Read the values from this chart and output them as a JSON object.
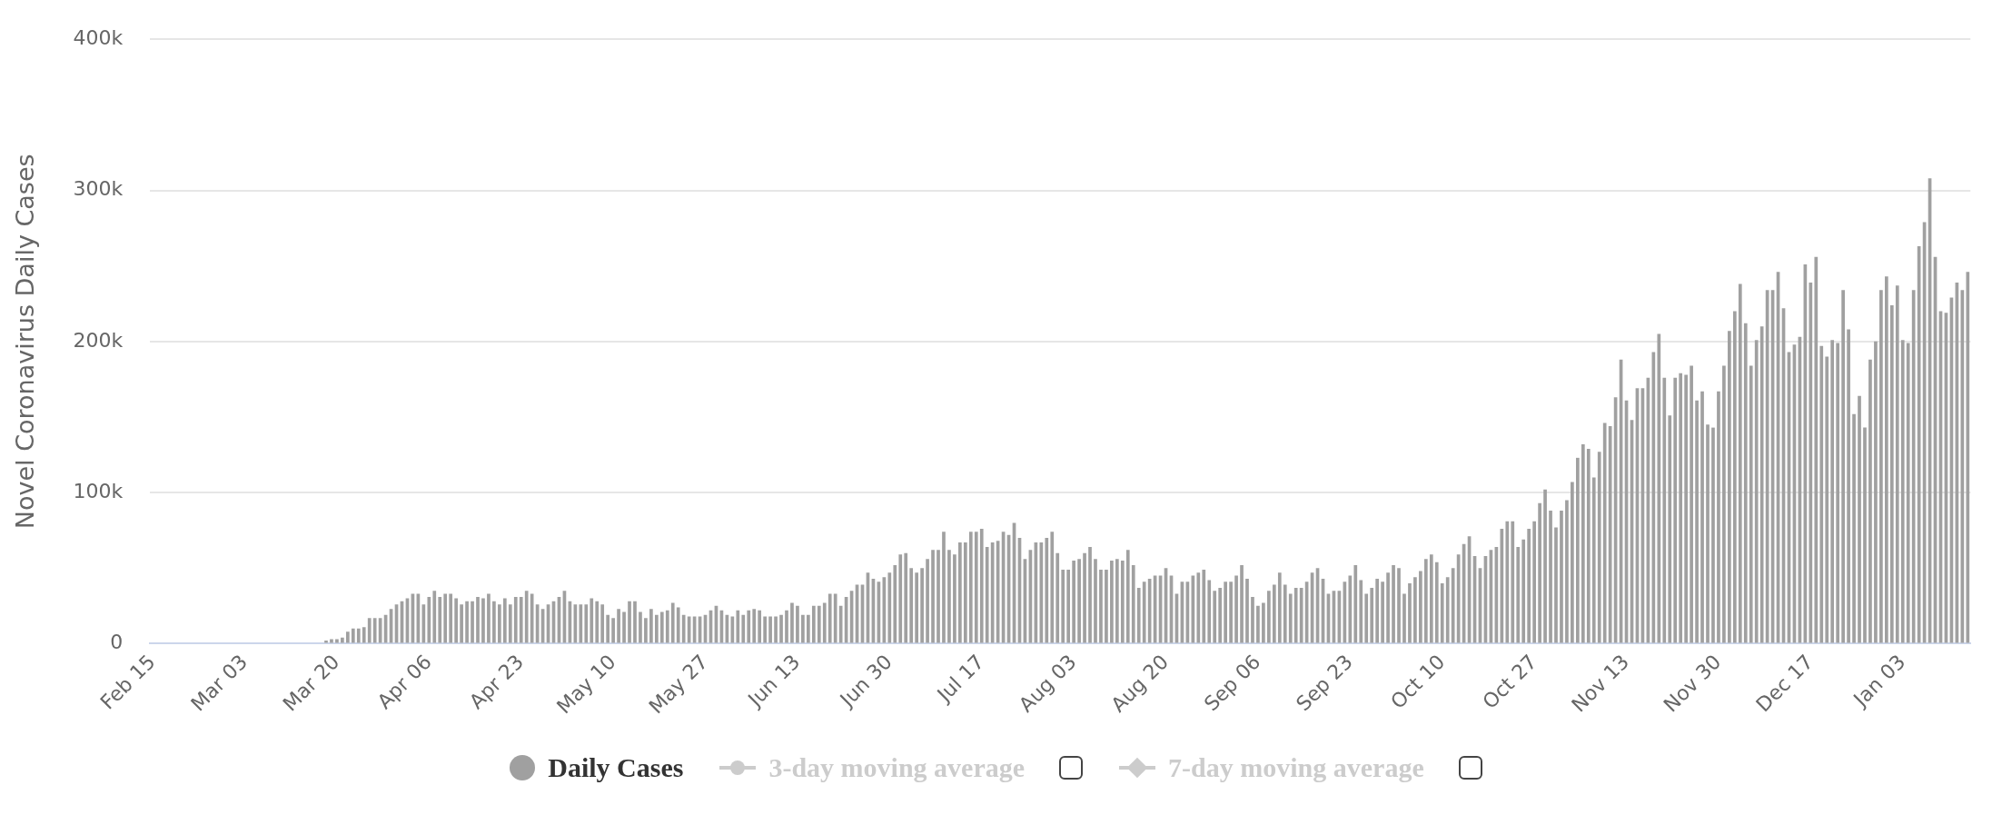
{
  "chart_data": {
    "type": "bar",
    "ylabel": "Novel Coronavirus Daily Cases",
    "categories": [
      "Feb 15",
      null,
      null,
      null,
      null,
      null,
      null,
      null,
      null,
      null,
      null,
      null,
      null,
      null,
      null,
      null,
      null,
      "Mar 03",
      null,
      null,
      null,
      null,
      null,
      null,
      null,
      null,
      null,
      null,
      null,
      null,
      null,
      null,
      null,
      null,
      "Mar 20",
      null,
      null,
      null,
      null,
      null,
      null,
      null,
      null,
      null,
      null,
      null,
      null,
      null,
      null,
      null,
      null,
      "Apr 06",
      null,
      null,
      null,
      null,
      null,
      null,
      null,
      null,
      null,
      null,
      null,
      null,
      null,
      null,
      null,
      null,
      "Apr 23",
      null,
      null,
      null,
      null,
      null,
      null,
      null,
      null,
      null,
      null,
      null,
      null,
      null,
      null,
      null,
      null,
      "May 10",
      null,
      null,
      null,
      null,
      null,
      null,
      null,
      null,
      null,
      null,
      null,
      null,
      null,
      null,
      null,
      null,
      "May 27",
      null,
      null,
      null,
      null,
      null,
      null,
      null,
      null,
      null,
      null,
      null,
      null,
      null,
      null,
      null,
      null,
      "Jun 13",
      null,
      null,
      null,
      null,
      null,
      null,
      null,
      null,
      null,
      null,
      null,
      null,
      null,
      null,
      null,
      null,
      "Jun 30",
      null,
      null,
      null,
      null,
      null,
      null,
      null,
      null,
      null,
      null,
      null,
      null,
      null,
      null,
      null,
      null,
      "Jul 17",
      null,
      null,
      null,
      null,
      null,
      null,
      null,
      null,
      null,
      null,
      null,
      null,
      null,
      null,
      null,
      null,
      "Aug 03",
      null,
      null,
      null,
      null,
      null,
      null,
      null,
      null,
      null,
      null,
      null,
      null,
      null,
      null,
      null,
      null,
      "Aug 20",
      null,
      null,
      null,
      null,
      null,
      null,
      null,
      null,
      null,
      null,
      null,
      null,
      null,
      null,
      null,
      null,
      "Sep 06",
      null,
      null,
      null,
      null,
      null,
      null,
      null,
      null,
      null,
      null,
      null,
      null,
      null,
      null,
      null,
      null,
      "Sep 23",
      null,
      null,
      null,
      null,
      null,
      null,
      null,
      null,
      null,
      null,
      null,
      null,
      null,
      null,
      null,
      null,
      "Oct 10",
      null,
      null,
      null,
      null,
      null,
      null,
      null,
      null,
      null,
      null,
      null,
      null,
      null,
      null,
      null,
      null,
      "Oct 27",
      null,
      null,
      null,
      null,
      null,
      null,
      null,
      null,
      null,
      null,
      null,
      null,
      null,
      null,
      null,
      null,
      "Nov 13",
      null,
      null,
      null,
      null,
      null,
      null,
      null,
      null,
      null,
      null,
      null,
      null,
      null,
      null,
      null,
      null,
      "Nov 30",
      null,
      null,
      null,
      null,
      null,
      null,
      null,
      null,
      null,
      null,
      null,
      null,
      null,
      null,
      null,
      null,
      "Dec 17",
      null,
      null,
      null,
      null,
      null,
      null,
      null,
      null,
      null,
      null,
      null,
      null,
      null,
      null,
      null,
      null,
      "Jan 03",
      null,
      null,
      null,
      null,
      null,
      null,
      null,
      null,
      null,
      null,
      null,
      null
    ],
    "series": [
      {
        "name": "Daily Cases",
        "color": "#a0a0a0",
        "values": [
          0,
          0,
          0,
          0,
          0,
          0,
          0,
          0,
          0,
          0,
          0,
          0,
          0,
          0,
          0,
          0,
          0,
          0,
          0,
          0,
          0,
          0,
          0,
          0,
          0,
          0,
          0,
          0,
          0,
          0,
          0,
          0,
          2000,
          3000,
          3000,
          4000,
          8000,
          10000,
          10000,
          11000,
          17000,
          17000,
          17000,
          19000,
          23000,
          26000,
          28000,
          30000,
          33000,
          33000,
          26000,
          31000,
          35000,
          31000,
          33000,
          33000,
          30000,
          26000,
          28000,
          28000,
          31000,
          30000,
          33000,
          28000,
          26000,
          30000,
          26000,
          31000,
          31000,
          35000,
          33000,
          26000,
          23000,
          26000,
          28000,
          31000,
          35000,
          28000,
          26000,
          26000,
          26000,
          30000,
          28000,
          26000,
          19000,
          17000,
          23000,
          21000,
          28000,
          28000,
          21000,
          17000,
          23000,
          19000,
          21000,
          22000,
          27000,
          24000,
          19000,
          18000,
          18000,
          18000,
          19000,
          22000,
          25000,
          22000,
          19000,
          18000,
          22000,
          19000,
          22000,
          23000,
          22000,
          18000,
          18000,
          18000,
          19000,
          22000,
          27000,
          25000,
          19000,
          19000,
          25000,
          25000,
          27000,
          33000,
          33000,
          25000,
          31000,
          35000,
          39000,
          39000,
          47000,
          43000,
          41000,
          44000,
          47000,
          52000,
          59000,
          60000,
          50000,
          47000,
          50000,
          56000,
          62000,
          62000,
          74000,
          62000,
          59000,
          67000,
          67000,
          74000,
          74000,
          76000,
          64000,
          67000,
          68000,
          74000,
          72000,
          80000,
          70000,
          56000,
          62000,
          67000,
          67000,
          70000,
          74000,
          60000,
          49000,
          49000,
          55000,
          56000,
          60000,
          64000,
          56000,
          49000,
          49000,
          55000,
          56000,
          55000,
          62000,
          52000,
          37000,
          41000,
          43000,
          45000,
          45000,
          50000,
          45000,
          33000,
          41000,
          41000,
          45000,
          47000,
          49000,
          42000,
          35000,
          37000,
          41000,
          41000,
          45000,
          52000,
          43000,
          31000,
          25000,
          27000,
          35000,
          39000,
          47000,
          39000,
          33000,
          37000,
          37000,
          41000,
          47000,
          50000,
          43000,
          33000,
          35000,
          35000,
          41000,
          45000,
          52000,
          42000,
          33000,
          37000,
          43000,
          41000,
          47000,
          52000,
          50000,
          33000,
          40000,
          44000,
          48000,
          56000,
          59000,
          54000,
          40000,
          44000,
          50000,
          59000,
          66000,
          71000,
          58000,
          50000,
          58000,
          62000,
          64000,
          76000,
          81000,
          81000,
          64000,
          69000,
          76000,
          81000,
          93000,
          102000,
          88000,
          77000,
          88000,
          95000,
          107000,
          123000,
          132000,
          129000,
          110000,
          127000,
          146000,
          144000,
          163000,
          188000,
          161000,
          148000,
          169000,
          169000,
          176000,
          193000,
          205000,
          176000,
          151000,
          176000,
          179000,
          178000,
          184000,
          161000,
          167000,
          145000,
          143000,
          167000,
          184000,
          207000,
          220000,
          238000,
          212000,
          184000,
          201000,
          210000,
          234000,
          234000,
          246000,
          222000,
          193000,
          198000,
          203000,
          251000,
          239000,
          256000,
          197000,
          190000,
          201000,
          199000,
          234000,
          208000,
          152000,
          164000,
          143000,
          188000,
          200000,
          234000,
          243000,
          224000,
          237000,
          201000,
          199000,
          234000,
          263000,
          279000,
          308000,
          256000,
          220000,
          219000,
          229000,
          239000,
          234000,
          246000
        ]
      },
      {
        "name": "3-day moving average",
        "type": "line",
        "color": "#cccccc",
        "marker": "circle",
        "values": [
          null,
          null,
          null,
          null,
          null,
          null,
          null,
          null,
          null,
          null,
          null,
          null,
          null,
          null,
          null,
          null,
          null,
          null,
          null,
          null,
          null,
          null,
          null,
          null,
          null,
          null,
          null,
          null,
          null,
          null,
          null,
          null,
          null,
          null,
          null,
          null,
          null,
          null,
          null,
          null,
          null,
          null,
          null,
          null,
          null,
          null,
          null,
          null,
          null,
          null,
          null,
          null,
          null,
          null,
          null,
          null,
          null,
          null,
          null,
          null,
          null,
          null,
          null,
          null,
          null,
          null,
          null,
          null,
          null,
          null,
          null,
          null,
          null,
          null,
          null,
          null,
          null,
          null,
          null,
          null,
          null,
          null,
          null,
          null,
          null,
          null,
          null,
          null,
          null,
          null,
          null,
          null,
          null,
          null,
          null,
          null,
          null,
          null,
          null,
          null,
          null,
          null,
          null,
          null,
          null,
          null,
          null,
          null,
          null,
          null,
          null,
          null,
          null,
          null,
          null,
          null,
          null,
          null,
          null,
          null,
          null,
          null,
          null,
          null,
          null,
          null,
          null,
          null,
          null,
          null,
          null,
          null,
          null,
          null,
          null,
          null,
          null,
          null,
          null,
          null,
          null,
          null,
          null,
          null,
          null,
          null,
          null,
          null,
          null,
          null,
          null,
          null,
          null,
          null,
          null,
          null,
          null,
          null,
          null,
          null,
          null,
          null,
          null,
          null,
          null,
          null,
          null,
          null,
          null,
          null,
          null,
          null,
          null,
          null,
          null,
          null,
          null,
          null,
          null,
          null,
          null,
          null,
          null,
          null,
          null,
          null,
          null,
          null,
          null,
          null,
          null,
          null,
          null,
          null,
          null,
          null,
          null,
          null,
          null,
          null,
          null,
          null,
          null,
          null,
          null,
          null,
          null,
          null,
          null,
          null,
          null,
          null,
          null,
          null,
          null,
          null,
          null,
          null,
          null,
          null,
          null,
          null,
          null,
          null,
          null,
          null,
          null,
          null,
          null,
          null,
          null,
          null,
          null,
          null,
          null,
          null,
          null,
          null,
          null,
          null,
          null,
          null,
          null,
          null,
          null,
          null,
          null,
          null,
          null,
          null,
          null,
          null,
          null,
          null,
          null,
          null,
          null,
          null,
          null,
          null,
          null,
          null,
          null,
          null,
          null,
          null,
          null,
          null,
          null,
          null,
          null,
          null,
          null,
          null,
          null,
          null,
          null,
          null,
          null,
          null,
          null,
          null,
          null,
          null,
          null,
          null,
          null,
          null,
          null,
          null,
          null,
          null,
          null,
          null,
          null,
          null,
          null,
          null,
          null,
          null,
          null,
          null,
          null,
          null,
          null,
          null,
          null,
          null,
          null,
          null,
          null,
          null,
          null,
          null,
          null,
          null,
          null,
          null,
          null,
          null,
          null,
          null,
          null,
          null,
          null,
          null,
          null,
          null,
          null,
          null,
          null,
          null,
          null,
          null,
          null,
          null
        ]
      },
      {
        "name": "7-day moving average",
        "type": "line",
        "color": "#cccccc",
        "marker": "diamond",
        "values": [
          null,
          null,
          null,
          null,
          null,
          null,
          null,
          null,
          null,
          null,
          null,
          null,
          null,
          null,
          null,
          null,
          null,
          null,
          null,
          null,
          null,
          null,
          null,
          null,
          null,
          null,
          null,
          null,
          null,
          null,
          null,
          null,
          null,
          null,
          null,
          null,
          null,
          null,
          null,
          null,
          null,
          null,
          null,
          null,
          null,
          null,
          null,
          null,
          null,
          null,
          null,
          null,
          null,
          null,
          null,
          null,
          null,
          null,
          null,
          null,
          null,
          null,
          null,
          null,
          null,
          null,
          null,
          null,
          null,
          null,
          null,
          null,
          null,
          null,
          null,
          null,
          null,
          null,
          null,
          null,
          null,
          null,
          null,
          null,
          null,
          null,
          null,
          null,
          null,
          null,
          null,
          null,
          null,
          null,
          null,
          null,
          null,
          null,
          null,
          null,
          null,
          null,
          null,
          null,
          null,
          null,
          null,
          null,
          null,
          null,
          null,
          null,
          null,
          null,
          null,
          null,
          null,
          null,
          null,
          null,
          null,
          null,
          null,
          null,
          null,
          null,
          null,
          null,
          null,
          null,
          null,
          null,
          null,
          null,
          null,
          null,
          null,
          null,
          null,
          null,
          null,
          null,
          null,
          null,
          null,
          null,
          null,
          null,
          null,
          null,
          null,
          null,
          null,
          null,
          null,
          null,
          null,
          null,
          null,
          null,
          null,
          null,
          null,
          null,
          null,
          null,
          null,
          null,
          null,
          null,
          null,
          null,
          null,
          null,
          null,
          null,
          null,
          null,
          null,
          null,
          null,
          null,
          null,
          null,
          null,
          null,
          null,
          null,
          null,
          null,
          null,
          null,
          null,
          null,
          null,
          null,
          null,
          null,
          null,
          null,
          null,
          null,
          null,
          null,
          null,
          null,
          null,
          null,
          null,
          null,
          null,
          null,
          null,
          null,
          null,
          null,
          null,
          null,
          null,
          null,
          null,
          null,
          null,
          null,
          null,
          null,
          null,
          null,
          null,
          null,
          null,
          null,
          null,
          null,
          null,
          null,
          null,
          null,
          null,
          null,
          null,
          null,
          null,
          null,
          null,
          null,
          null,
          null,
          null,
          null,
          null,
          null,
          null,
          null,
          null,
          null,
          null,
          null,
          null,
          null,
          null,
          null,
          null,
          null,
          null,
          null,
          null,
          null,
          null,
          null,
          null,
          null,
          null,
          null,
          null,
          null,
          null,
          null,
          null,
          null,
          null,
          null,
          null,
          null,
          null,
          null,
          null,
          null,
          null,
          null,
          null,
          null,
          null,
          null,
          null,
          null,
          null,
          null,
          null,
          null,
          null,
          null,
          null,
          null,
          null,
          null,
          null,
          null,
          null,
          null,
          null,
          null,
          null,
          null,
          null,
          null,
          null,
          null,
          null,
          null,
          null,
          null,
          null,
          null,
          null,
          null,
          null,
          null,
          null,
          null,
          null,
          null,
          null,
          null,
          null,
          null
        ]
      }
    ],
    "ylim": [
      0,
      400000
    ],
    "yticks": [
      0,
      {
        "value": 100000,
        "label": "100k"
      },
      {
        "value": 200000,
        "label": "200k"
      },
      {
        "value": 300000,
        "label": "300k"
      },
      {
        "value": 400000,
        "label": "400k"
      }
    ],
    "grid": "y",
    "legend": "bottom"
  }
}
